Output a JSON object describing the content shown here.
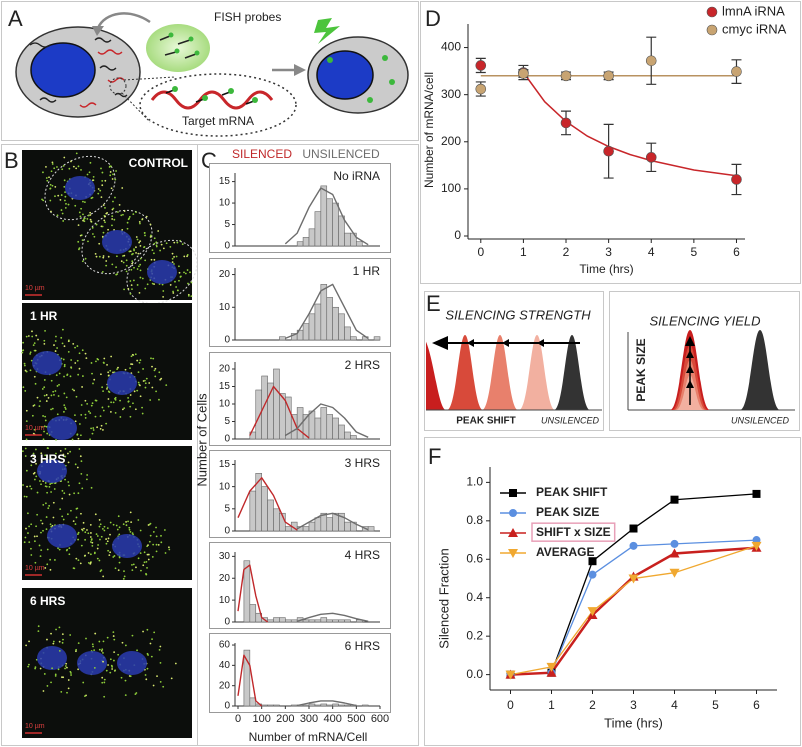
{
  "panel_a": {
    "letter": "A",
    "probes": "FISH probes",
    "target": "Target mRNA"
  },
  "panel_b": {
    "letter": "B",
    "images": [
      {
        "label": "CONTROL",
        "scale": "10 µm"
      },
      {
        "label": "1 HR",
        "scale": "10 µm"
      },
      {
        "label": "3 HRS",
        "scale": "10 µm"
      },
      {
        "label": "6 HRS",
        "scale": "10 µm"
      }
    ]
  },
  "panel_c": {
    "letter": "C",
    "legend": [
      {
        "name": "SILENCED",
        "color": "#c0282a"
      },
      {
        "name": "UNSILENCED",
        "color": "#6d6d6d"
      }
    ],
    "ylabel": "Number of Cells",
    "xlabel": "Number of mRNA/Cell"
  },
  "panel_d": {
    "letter": "D"
  },
  "panel_e": {
    "letter": "E",
    "strength": "SILENCING STRENGTH",
    "shift": "PEAK SHIFT",
    "unsilenced": "UNSILENCED",
    "yield": "SILENCING YIELD",
    "size": "PEAK SIZE",
    "unsilenced2": "UNSILENCED"
  },
  "panel_f": {
    "letter": "F"
  },
  "chart_data": [
    {
      "type": "scatter",
      "ylabel": "Number of mRNA/cell",
      "xlabel": "Time (hrs)",
      "legend": "top-right",
      "x": [
        0,
        1,
        2,
        3,
        4,
        6
      ],
      "series": [
        {
          "name": "lmnA iRNA",
          "color": "#c8262a",
          "values": [
            362,
            347,
            240,
            180,
            167,
            120
          ],
          "errors": [
            15,
            15,
            25,
            57,
            30,
            32
          ]
        },
        {
          "name": "cmyc iRNA",
          "color": "#c8a472",
          "values": [
            312,
            345,
            340,
            340,
            372,
            349
          ],
          "errors": [
            15,
            8,
            8,
            8,
            50,
            25
          ]
        }
      ],
      "fits": [
        {
          "color": "#c8262a",
          "x": [
            1,
            1.5,
            2,
            2.5,
            3,
            3.5,
            4,
            5,
            6
          ],
          "values": [
            347,
            285,
            243,
            212,
            190,
            173,
            160,
            140,
            128
          ]
        },
        {
          "color": "#b89260",
          "x": [
            0,
            6
          ],
          "values": [
            340,
            340
          ]
        }
      ],
      "xlim": [
        -0.3,
        6.2
      ],
      "ylim": [
        0,
        450
      ],
      "xticks": [
        0,
        1,
        2,
        3,
        4,
        5,
        6
      ],
      "yticks": [
        0,
        100,
        200,
        300,
        400
      ]
    },
    {
      "type": "line",
      "ylabel": "Silenced Fraction",
      "xlabel": "Time (hrs)",
      "legend": "top-left",
      "x": [
        0,
        1,
        2,
        3,
        4,
        6
      ],
      "series": [
        {
          "name": "PEAK SHIFT",
          "color": "#000000",
          "marker": "square",
          "values": [
            0,
            0.01,
            0.59,
            0.76,
            0.91,
            0.94
          ]
        },
        {
          "name": "PEAK SIZE",
          "color": "#5b8fe0",
          "marker": "circle",
          "values": [
            0,
            0.01,
            0.52,
            0.67,
            0.68,
            0.7
          ]
        },
        {
          "name": "SHIFT x SIZE",
          "color": "#c8201e",
          "marker": "triangle-up",
          "boxed": true,
          "values": [
            0,
            0.01,
            0.31,
            0.51,
            0.63,
            0.66
          ]
        },
        {
          "name": "AVERAGE",
          "color": "#f0a830",
          "marker": "triangle-down",
          "values": [
            0,
            0.04,
            0.33,
            0.5,
            0.53,
            0.67
          ]
        }
      ],
      "xlim": [
        -0.5,
        6.5
      ],
      "ylim": [
        -0.08,
        1.08
      ],
      "xticks": [
        0,
        1,
        2,
        3,
        4,
        5,
        6
      ],
      "yticks": [
        {
          "value": 0,
          "label": "0.0"
        },
        {
          "value": 0.2,
          "label": "0.2"
        },
        {
          "value": 0.4,
          "label": "0.4"
        },
        {
          "value": 0.6,
          "label": "0.6"
        },
        {
          "value": 0.8,
          "label": "0.8"
        },
        {
          "value": 1,
          "label": "1.0"
        }
      ]
    },
    {
      "type": "histogram",
      "label": "No iRNA",
      "bins": [
        0,
        25,
        50,
        75,
        100,
        125,
        150,
        175,
        200,
        225,
        250,
        275,
        300,
        325,
        350,
        375,
        400,
        425,
        450,
        475,
        500,
        525,
        550,
        575,
        600
      ],
      "counts": [
        0,
        0,
        0,
        0,
        0,
        0,
        0,
        0,
        0,
        0,
        1,
        2,
        4,
        8,
        14,
        11,
        10,
        7,
        3,
        3,
        1,
        0,
        0,
        0
      ],
      "fits": [
        {
          "color": "#6d6d6d",
          "x": [
            200,
            250,
            300,
            350,
            400,
            450,
            500,
            550
          ],
          "values": [
            0.5,
            3,
            9,
            13.5,
            12,
            6,
            2,
            0.3
          ]
        }
      ],
      "xlim": [
        0,
        600
      ],
      "ylim": [
        0,
        17
      ],
      "yticks": [
        0,
        5,
        10,
        15
      ]
    },
    {
      "type": "histogram",
      "label": "1 HR",
      "bins": [
        0,
        25,
        50,
        75,
        100,
        125,
        150,
        175,
        200,
        225,
        250,
        275,
        300,
        325,
        350,
        375,
        400,
        425,
        450,
        475,
        500,
        525,
        550,
        575,
        600
      ],
      "counts": [
        0,
        0,
        0,
        0,
        0,
        0,
        0,
        1,
        0,
        2,
        3,
        5,
        8,
        11,
        17,
        13,
        10,
        8,
        4,
        1,
        0,
        1,
        0,
        1
      ],
      "fits": [
        {
          "color": "#6d6d6d",
          "x": [
            200,
            250,
            300,
            350,
            400,
            450,
            500,
            550
          ],
          "values": [
            0.5,
            2,
            8,
            15,
            17,
            10,
            3,
            0.5
          ]
        }
      ],
      "xlim": [
        0,
        600
      ],
      "ylim": [
        0,
        22
      ],
      "yticks": [
        0,
        10,
        20
      ]
    },
    {
      "type": "histogram",
      "label": "2 HRS",
      "bins": [
        0,
        25,
        50,
        75,
        100,
        125,
        150,
        175,
        200,
        225,
        250,
        275,
        300,
        325,
        350,
        375,
        400,
        425,
        450,
        475,
        500,
        525,
        550,
        575,
        600
      ],
      "counts": [
        0,
        0,
        2,
        14,
        18,
        16,
        20,
        13,
        12,
        7,
        9,
        7,
        8,
        6,
        9,
        7,
        6,
        4,
        2,
        1,
        0,
        0,
        0,
        0
      ],
      "fits": [
        {
          "color": "#c0282a",
          "x": [
            50,
            100,
            150,
            200,
            250,
            300
          ],
          "values": [
            1,
            8,
            15,
            11,
            3,
            0.3
          ]
        },
        {
          "color": "#6d6d6d",
          "x": [
            200,
            250,
            300,
            350,
            400,
            450,
            500,
            550
          ],
          "values": [
            1,
            3,
            7,
            10,
            9,
            6,
            2,
            0.5
          ]
        }
      ],
      "xlim": [
        0,
        600
      ],
      "ylim": [
        0,
        22
      ],
      "yticks": [
        0,
        5,
        10,
        15,
        20
      ]
    },
    {
      "type": "histogram",
      "label": "3 HRS",
      "bins": [
        0,
        25,
        50,
        75,
        100,
        125,
        150,
        175,
        200,
        225,
        250,
        275,
        300,
        325,
        350,
        375,
        400,
        425,
        450,
        475,
        500,
        525,
        550,
        575,
        600
      ],
      "counts": [
        0,
        0,
        9,
        13,
        10,
        7,
        5,
        4,
        1,
        2,
        1,
        1,
        2,
        3,
        4,
        3,
        4,
        4,
        2,
        2,
        0,
        1,
        1,
        0
      ],
      "fits": [
        {
          "color": "#c0282a",
          "x": [
            0,
            50,
            100,
            150,
            200,
            250
          ],
          "values": [
            3,
            9,
            12,
            8,
            2,
            0.2
          ]
        },
        {
          "color": "#6d6d6d",
          "x": [
            250,
            300,
            350,
            400,
            450,
            500,
            550
          ],
          "values": [
            0.5,
            2,
            3.5,
            4,
            3,
            1.5,
            0.3
          ]
        }
      ],
      "xlim": [
        0,
        600
      ],
      "ylim": [
        0,
        16
      ],
      "yticks": [
        0,
        5,
        10,
        15
      ]
    },
    {
      "type": "histogram",
      "label": "4 HRS",
      "bins": [
        0,
        25,
        50,
        75,
        100,
        125,
        150,
        175,
        200,
        225,
        250,
        275,
        300,
        325,
        350,
        375,
        400,
        425,
        450,
        475,
        500,
        525,
        550,
        575,
        600
      ],
      "counts": [
        0,
        28,
        8,
        4,
        2,
        1,
        2,
        2,
        1,
        1,
        2,
        1,
        1,
        1,
        2,
        1,
        1,
        1,
        1,
        0,
        1,
        0,
        0,
        0
      ],
      "fits": [
        {
          "color": "#c0282a",
          "x": [
            0,
            25,
            50,
            75,
            100,
            125
          ],
          "values": [
            5,
            24,
            26,
            12,
            2,
            0
          ]
        },
        {
          "color": "#6d6d6d",
          "x": [
            250,
            300,
            350,
            400,
            450,
            500,
            550
          ],
          "values": [
            0.3,
            2,
            3.5,
            4,
            3,
            1.5,
            0.3
          ]
        }
      ],
      "xlim": [
        0,
        600
      ],
      "ylim": [
        0,
        32
      ],
      "yticks": [
        0,
        10,
        20,
        30
      ]
    },
    {
      "type": "histogram",
      "label": "6 HRS",
      "bins": [
        0,
        25,
        50,
        75,
        100,
        125,
        150,
        175,
        200,
        225,
        250,
        275,
        300,
        325,
        350,
        375,
        400,
        425,
        450,
        475,
        500,
        525,
        550,
        575,
        600
      ],
      "counts": [
        0,
        55,
        8,
        2,
        1,
        1,
        1,
        0,
        0,
        1,
        1,
        1,
        2,
        1,
        2,
        1,
        2,
        1,
        1,
        1,
        0,
        1,
        0,
        0
      ],
      "fits": [
        {
          "color": "#c0282a",
          "x": [
            0,
            25,
            50,
            75,
            100
          ],
          "values": [
            10,
            50,
            40,
            5,
            0
          ]
        },
        {
          "color": "#6d6d6d",
          "x": [
            250,
            300,
            350,
            400,
            450,
            500
          ],
          "values": [
            0.5,
            3,
            5,
            5,
            3,
            0.5
          ]
        }
      ],
      "xlim": [
        0,
        600
      ],
      "ylim": [
        0,
        62
      ],
      "yticks": [
        0,
        20,
        40,
        60
      ],
      "xticks": [
        0,
        100,
        200,
        300,
        400,
        500,
        600
      ]
    }
  ]
}
